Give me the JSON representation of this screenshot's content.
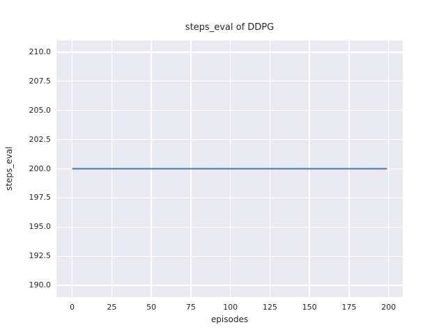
{
  "figure": {
    "background_color": "#ffffff"
  },
  "chart_data": {
    "type": "line",
    "title": "steps_eval of DDPG",
    "xlabel": "episodes",
    "ylabel": "steps_eval",
    "xlim": [
      -9.95,
      208.95
    ],
    "ylim": [
      189.0,
      211.0
    ],
    "xticks": [
      0,
      25,
      50,
      75,
      100,
      125,
      150,
      175,
      200
    ],
    "xtick_labels": [
      "0",
      "25",
      "50",
      "75",
      "100",
      "125",
      "150",
      "175",
      "200"
    ],
    "yticks": [
      190.0,
      192.5,
      195.0,
      197.5,
      200.0,
      202.5,
      205.0,
      207.5,
      210.0
    ],
    "ytick_labels": [
      "190.0",
      "192.5",
      "195.0",
      "197.5",
      "200.0",
      "202.5",
      "205.0",
      "207.5",
      "210.0"
    ],
    "grid": true,
    "legend": "none",
    "colors": {
      "axes_background": "#eaeaf2",
      "grid_color": "#ffffff",
      "text_color": "#262626",
      "line_color": "#4c72b0"
    },
    "series": [
      {
        "name": "steps_eval",
        "color": "#4c72b0",
        "note": "constant value 200 for every episode from 0 to 199",
        "x": [
          0,
          199
        ],
        "y": [
          200,
          200
        ]
      }
    ]
  }
}
